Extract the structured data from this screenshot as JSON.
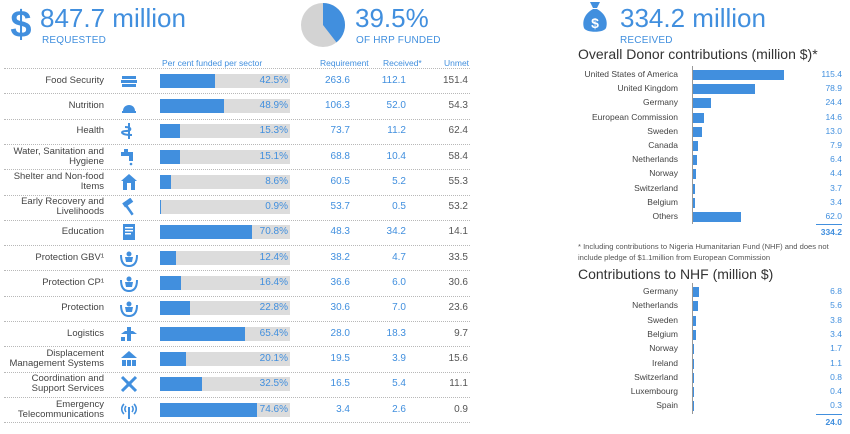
{
  "header": {
    "requested_value": "847.7 million",
    "requested_label": "REQUESTED",
    "funded_value": "39.5%",
    "funded_label": "OF HRP FUNDED",
    "funded_fraction": 0.395,
    "received_value": "334.2 million",
    "received_label": "RECEIVED"
  },
  "colors": {
    "accent": "#418fde",
    "bar_background": "#dcdcdc"
  },
  "chart_data": [
    {
      "type": "table",
      "columns": [
        "Per cent funded per sector",
        "Requirement",
        "Received*",
        "Unmet"
      ],
      "rows": [
        {
          "sector": "Food Security",
          "icon": "food-security-icon",
          "pct_label": "42.5%",
          "pct": 42.5,
          "requirement": "263.6",
          "received": "112.1",
          "unmet": "151.4"
        },
        {
          "sector": "Nutrition",
          "icon": "nutrition-icon",
          "pct_label": "48.9%",
          "pct": 48.9,
          "requirement": "106.3",
          "received": "52.0",
          "unmet": "54.3"
        },
        {
          "sector": "Health",
          "icon": "health-icon",
          "pct_label": "15.3%",
          "pct": 15.3,
          "requirement": "73.7",
          "received": "11.2",
          "unmet": "62.4"
        },
        {
          "sector": "Water, Sanitation and Hygiene",
          "icon": "wash-icon",
          "pct_label": "15.1%",
          "pct": 15.1,
          "requirement": "68.8",
          "received": "10.4",
          "unmet": "58.4"
        },
        {
          "sector": "Shelter and Non-food Items",
          "icon": "shelter-icon",
          "pct_label": "8.6%",
          "pct": 8.6,
          "requirement": "60.5",
          "received": "5.2",
          "unmet": "55.3"
        },
        {
          "sector": "Early Recovery and Livelihoods",
          "icon": "early-recovery-icon",
          "pct_label": "0.9%",
          "pct": 0.9,
          "requirement": "53.7",
          "received": "0.5",
          "unmet": "53.2"
        },
        {
          "sector": "Education",
          "icon": "education-icon",
          "pct_label": "70.8%",
          "pct": 70.8,
          "requirement": "48.3",
          "received": "34.2",
          "unmet": "14.1"
        },
        {
          "sector": "Protection GBV¹",
          "icon": "protection-icon",
          "pct_label": "12.4%",
          "pct": 12.4,
          "requirement": "38.2",
          "received": "4.7",
          "unmet": "33.5"
        },
        {
          "sector": "Protection CP¹",
          "icon": "protection-icon",
          "pct_label": "16.4%",
          "pct": 16.4,
          "requirement": "36.6",
          "received": "6.0",
          "unmet": "30.6"
        },
        {
          "sector": "Protection",
          "icon": "protection-icon",
          "pct_label": "22.8%",
          "pct": 22.8,
          "requirement": "30.6",
          "received": "7.0",
          "unmet": "23.6"
        },
        {
          "sector": "Logistics",
          "icon": "logistics-icon",
          "pct_label": "65.4%",
          "pct": 65.4,
          "requirement": "28.0",
          "received": "18.3",
          "unmet": "9.7"
        },
        {
          "sector": "Displacement Management Systems",
          "icon": "camp-icon",
          "pct_label": "20.1%",
          "pct": 20.1,
          "requirement": "19.5",
          "received": "3.9",
          "unmet": "15.6"
        },
        {
          "sector": "Coordination and Support Services",
          "icon": "coordination-icon",
          "pct_label": "32.5%",
          "pct": 32.5,
          "requirement": "16.5",
          "received": "5.4",
          "unmet": "11.1"
        },
        {
          "sector": "Emergency Telecommunications",
          "icon": "telecom-icon",
          "pct_label": "74.6%",
          "pct": 74.6,
          "requirement": "3.4",
          "received": "2.6",
          "unmet": "0.9"
        }
      ]
    },
    {
      "type": "bar",
      "orientation": "horizontal",
      "title": "Overall Donor contributions (million $)*",
      "categories": [
        "United States of America",
        "United Kingdom",
        "Germany",
        "European Commission",
        "Sweden",
        "Canada",
        "Netherlands",
        "Norway",
        "Switzerland",
        "Belgium",
        "Others"
      ],
      "values": [
        115.4,
        78.9,
        24.4,
        14.6,
        13.0,
        7.9,
        6.4,
        4.4,
        3.7,
        3.4,
        62.0
      ],
      "value_labels": [
        "115.4",
        "78.9",
        "24.4",
        "14.6",
        "13.0",
        "7.9",
        "6.4",
        "4.4",
        "3.7",
        "3.4",
        "62.0"
      ],
      "total": "334.2",
      "note": "* Including contributions to Nigeria Humanitarian Fund (NHF) and does not include pledge of $1.1million from European Commission"
    },
    {
      "type": "bar",
      "orientation": "horizontal",
      "title": "Contributions to NHF (million $)",
      "categories": [
        "Germany",
        "Netherlands",
        "Sweden",
        "Belgium",
        "Norway",
        "Ireland",
        "Switzerland",
        "Luxembourg",
        "Spain"
      ],
      "values": [
        6.8,
        5.6,
        3.8,
        3.4,
        1.7,
        1.1,
        0.8,
        0.4,
        0.3
      ],
      "value_labels": [
        "6.8",
        "5.6",
        "3.8",
        "3.4",
        "1.7",
        "1.1",
        "0.8",
        "0.4",
        "0.3"
      ],
      "total": "24.0"
    }
  ]
}
